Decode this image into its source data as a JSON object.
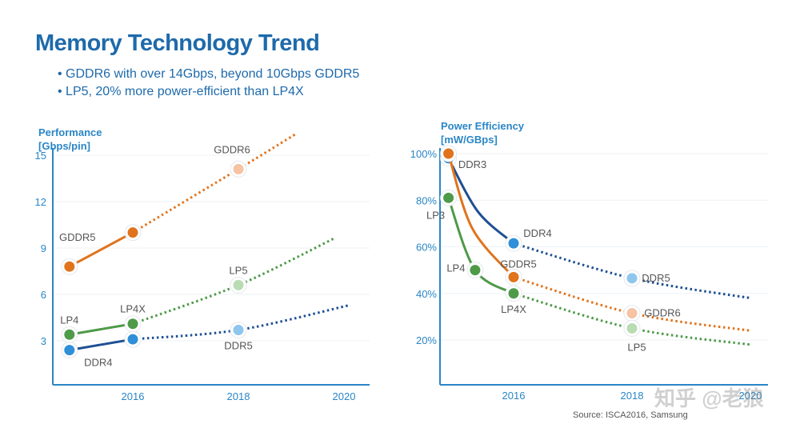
{
  "title": "Memory Technology Trend",
  "bullets": [
    "GDDR6 with over 14Gbps, beyond 10Gbps GDDR5",
    "LP5, 20% more power-efficient than LP4X"
  ],
  "source": "Source: ISCA2016, Samsung",
  "watermark": "知乎 @老狼",
  "colors": {
    "title": "#1e6aab",
    "axis": "#2a86c6",
    "orange": "#e0731c",
    "orange_light": "#f6c3a3",
    "green": "#4e9a48",
    "green_light": "#b9dcb2",
    "blue": "#2f8fd8",
    "blue_dark": "#1e4f93",
    "blue_light": "#8fc6ee"
  },
  "chart_data": [
    {
      "type": "line",
      "ylabel": [
        "Performance",
        "[Gbps/pin]"
      ],
      "yticks": [
        3,
        6,
        9,
        12,
        15
      ],
      "xticks": [
        2016,
        2018,
        2020
      ],
      "ylim": [
        0,
        16
      ],
      "xlim": [
        2014.5,
        2020.3
      ],
      "grid": true,
      "series": [
        {
          "color": "orange",
          "actual": [
            [
              2014.8,
              7.8,
              "GDDR5"
            ],
            [
              2016,
              10,
              ""
            ]
          ],
          "projected": [
            [
              2018,
              14.1,
              "GDDR6"
            ],
            [
              2019.1,
              16.4,
              ""
            ]
          ]
        },
        {
          "color": "green",
          "actual": [
            [
              2014.8,
              3.4,
              "LP4"
            ],
            [
              2016,
              4.1,
              "LP4X"
            ]
          ],
          "projected": [
            [
              2018,
              6.6,
              "LP5"
            ],
            [
              2019.8,
              9.6,
              ""
            ]
          ]
        },
        {
          "color": "blue_dark",
          "actual": [
            [
              2014.8,
              2.4,
              "DDR4"
            ],
            [
              2016,
              3.1,
              ""
            ]
          ],
          "projected": [
            [
              2018,
              3.7,
              "DDR5"
            ],
            [
              2020.1,
              5.3,
              ""
            ]
          ]
        }
      ]
    },
    {
      "type": "line",
      "ylabel": [
        "Power Efficiency",
        "[mW/GBps]"
      ],
      "yticks": [
        "20%",
        "40%",
        "60%",
        "80%",
        "100%"
      ],
      "xticks": [
        2016,
        2018,
        "2020"
      ],
      "ylim": [
        0,
        100
      ],
      "xlim": [
        2014.75,
        2020.4
      ],
      "grid": true,
      "series": [
        {
          "color": "blue_dark",
          "actual": [
            [
              2014.9,
              98,
              "DDR3"
            ],
            [
              2015.4,
              75,
              ""
            ],
            [
              2016,
              61.5,
              "DDR4"
            ]
          ],
          "projected": [
            [
              2018,
              46.5,
              "DDR5"
            ],
            [
              2020,
              38,
              ""
            ]
          ]
        },
        {
          "color": "orange",
          "actual": [
            [
              2014.9,
              100,
              ""
            ],
            [
              2015.3,
              68,
              ""
            ],
            [
              2016,
              47,
              "GDDR5"
            ]
          ],
          "projected": [
            [
              2018,
              31.5,
              "GDDR6"
            ],
            [
              2020,
              24,
              ""
            ]
          ]
        },
        {
          "color": "green",
          "actual": [
            [
              2014.9,
              81,
              "LP3"
            ],
            [
              2015.35,
              50,
              "LP4"
            ],
            [
              2016,
              40,
              "LP4X"
            ]
          ],
          "projected": [
            [
              2018,
              25,
              "LP5"
            ],
            [
              2020,
              18,
              ""
            ]
          ]
        }
      ]
    }
  ]
}
